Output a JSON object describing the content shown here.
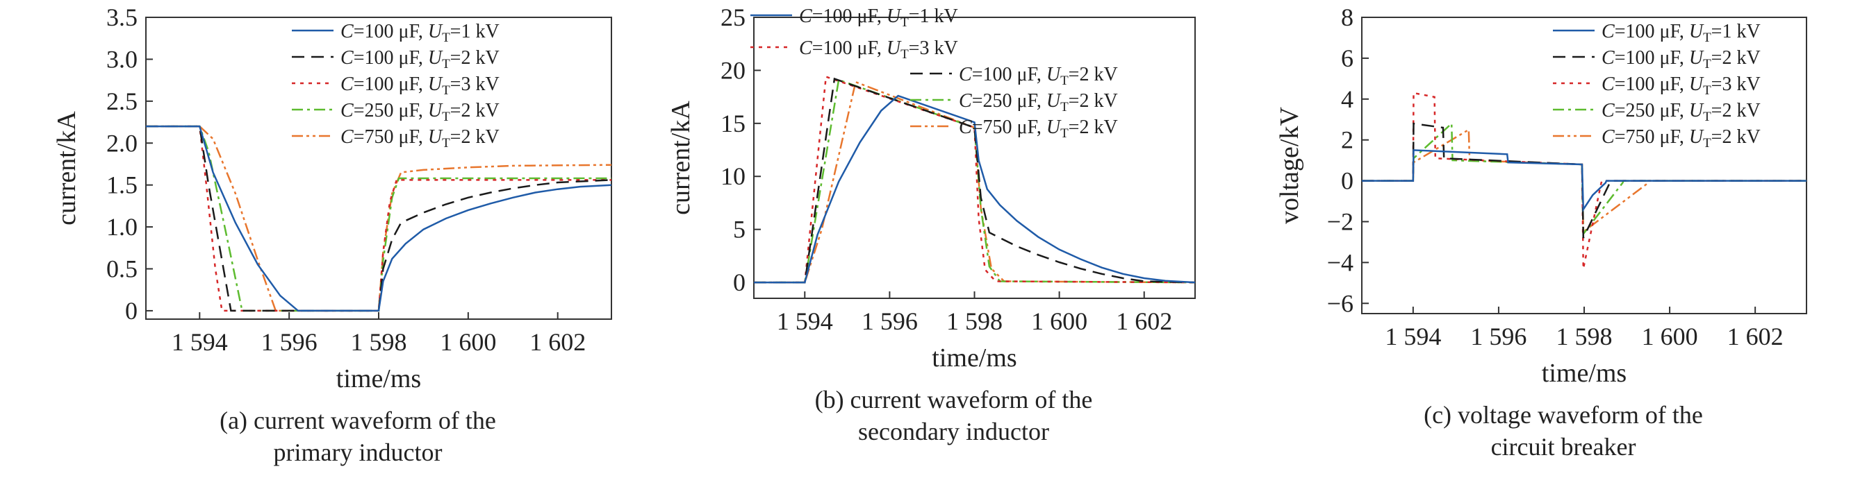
{
  "colors": {
    "s1": "#1f5ba8",
    "s2": "#1a1a1a",
    "s3": "#d62728",
    "s4": "#5dbb2f",
    "s5": "#e8762d"
  },
  "legend_labels": [
    {
      "pre": "C",
      "mid": "=100 μF, ",
      "u": "U",
      "sub": "T",
      "post": "=1 kV"
    },
    {
      "pre": "C",
      "mid": "=100 μF, ",
      "u": "U",
      "sub": "T",
      "post": "=2 kV"
    },
    {
      "pre": "C",
      "mid": "=100 μF, ",
      "u": "U",
      "sub": "T",
      "post": "=3 kV"
    },
    {
      "pre": "C",
      "mid": "=250 μF, ",
      "u": "U",
      "sub": "T",
      "post": "=2 kV"
    },
    {
      "pre": "C",
      "mid": "=750 μF, ",
      "u": "U",
      "sub": "T",
      "post": "=2 kV"
    }
  ],
  "chart_data": [
    {
      "type": "line",
      "xlabel": "time/ms",
      "ylabel": "current/kA",
      "caption": [
        "(a) current waveform of the",
        "primary inductor"
      ],
      "xlim": [
        1592.8,
        1603.2
      ],
      "ylim": [
        -0.1,
        3.5
      ],
      "xticks": [
        1594,
        1596,
        1598,
        1600,
        1602
      ],
      "xtick_labels": [
        "1 594",
        "1 596",
        "1 598",
        "1 600",
        "1 602"
      ],
      "yticks": [
        0,
        0.5,
        1.0,
        1.5,
        2.0,
        2.5,
        3.0,
        3.5
      ],
      "ytick_labels": [
        "0",
        "0.5",
        "1.0",
        "1.5",
        "2.0",
        "2.5",
        "3.0",
        "3.5"
      ],
      "legend_order": [
        0,
        1,
        2,
        3,
        4
      ],
      "series": [
        {
          "x": [
            1592.8,
            1594.0,
            1594.3,
            1594.8,
            1595.3,
            1595.8,
            1596.2,
            1598.0,
            1598.1,
            1598.3,
            1598.6,
            1599.0,
            1599.5,
            1600.0,
            1600.5,
            1601.0,
            1601.5,
            1602.0,
            1602.5,
            1603.2
          ],
          "y": [
            2.2,
            2.2,
            1.65,
            1.05,
            0.55,
            0.18,
            0.0,
            0.0,
            0.35,
            0.62,
            0.8,
            0.97,
            1.1,
            1.2,
            1.28,
            1.35,
            1.41,
            1.45,
            1.48,
            1.5
          ]
        },
        {
          "x": [
            1592.8,
            1594.0,
            1594.2,
            1594.5,
            1594.7,
            1598.0,
            1598.1,
            1598.3,
            1598.5,
            1599.0,
            1599.5,
            1600.0,
            1600.5,
            1601.0,
            1601.5,
            1602.0,
            1603.2
          ],
          "y": [
            2.2,
            2.2,
            1.5,
            0.6,
            0.0,
            0.0,
            0.5,
            0.85,
            1.05,
            1.17,
            1.27,
            1.35,
            1.41,
            1.46,
            1.5,
            1.53,
            1.56
          ]
        },
        {
          "x": [
            1592.8,
            1594.0,
            1594.15,
            1594.35,
            1594.5,
            1598.0,
            1598.1,
            1598.25,
            1598.4,
            1603.2
          ],
          "y": [
            2.2,
            2.2,
            1.5,
            0.5,
            0.0,
            0.0,
            0.7,
            1.3,
            1.56,
            1.56
          ]
        },
        {
          "x": [
            1592.8,
            1594.0,
            1594.2,
            1594.6,
            1594.95,
            1598.0,
            1598.1,
            1598.3,
            1598.45,
            1603.2
          ],
          "y": [
            2.2,
            2.2,
            1.9,
            0.9,
            0.0,
            0.0,
            0.6,
            1.35,
            1.58,
            1.58
          ]
        },
        {
          "x": [
            1592.8,
            1594.0,
            1594.3,
            1594.8,
            1595.3,
            1595.7,
            1598.0,
            1598.1,
            1598.3,
            1598.5,
            1599.0,
            1600.0,
            1601.0,
            1603.2
          ],
          "y": [
            2.2,
            2.2,
            2.05,
            1.4,
            0.6,
            0.0,
            0.0,
            0.7,
            1.4,
            1.65,
            1.68,
            1.71,
            1.73,
            1.74
          ]
        }
      ]
    },
    {
      "type": "line",
      "xlabel": "time/ms",
      "ylabel": "current/kA",
      "caption": [
        "(b) current waveform of the",
        "secondary inductor"
      ],
      "xlim": [
        1592.8,
        1603.2
      ],
      "ylim": [
        -1.5,
        25
      ],
      "xticks": [
        1594,
        1596,
        1598,
        1600,
        1602
      ],
      "xtick_labels": [
        "1 594",
        "1 596",
        "1 598",
        "1 600",
        "1 602"
      ],
      "yticks": [
        0,
        5,
        10,
        15,
        20,
        25
      ],
      "ytick_labels": [
        "0",
        "5",
        "10",
        "15",
        "20",
        "25"
      ],
      "legend_order": [
        0,
        2,
        1,
        3,
        4
      ],
      "series": [
        {
          "x": [
            1592.8,
            1594.0,
            1594.3,
            1594.8,
            1595.3,
            1595.8,
            1596.2,
            1598.0,
            1598.1,
            1598.3,
            1598.6,
            1599.0,
            1599.5,
            1600.0,
            1600.5,
            1601.0,
            1601.5,
            1602.0,
            1602.5,
            1603.2
          ],
          "y": [
            0,
            0,
            4.5,
            9.5,
            13.2,
            16.2,
            17.6,
            15.1,
            11.5,
            8.8,
            7.3,
            5.8,
            4.3,
            3.1,
            2.2,
            1.4,
            0.8,
            0.4,
            0.15,
            0
          ]
        },
        {
          "x": [
            1592.8,
            1594.0,
            1594.7,
            1598.0,
            1598.15,
            1598.35,
            1599.0,
            1599.5,
            1600.0,
            1600.5,
            1601.0,
            1601.5,
            1602.0,
            1603.2
          ],
          "y": [
            0,
            0,
            19.2,
            14.6,
            8.0,
            4.7,
            3.4,
            2.6,
            1.9,
            1.3,
            0.8,
            0.4,
            0.1,
            0
          ]
        },
        {
          "x": [
            1592.8,
            1594.0,
            1594.5,
            1598.0,
            1598.1,
            1598.25,
            1598.5,
            1603.2
          ],
          "y": [
            0,
            0,
            19.4,
            14.6,
            6.0,
            1.2,
            0.1,
            0
          ]
        },
        {
          "x": [
            1592.8,
            1594.0,
            1594.8,
            1598.0,
            1598.15,
            1598.35,
            1598.6,
            1603.2
          ],
          "y": [
            0,
            0,
            19.1,
            14.6,
            7.0,
            1.5,
            0.1,
            0
          ]
        },
        {
          "x": [
            1592.8,
            1594.0,
            1594.4,
            1595.2,
            1598.0,
            1598.15,
            1598.4,
            1598.7,
            1603.2
          ],
          "y": [
            0,
            0,
            5.0,
            18.9,
            14.6,
            7.0,
            1.3,
            0.1,
            0
          ]
        }
      ]
    },
    {
      "type": "line",
      "xlabel": "time/ms",
      "ylabel": "voltage/kV",
      "caption": [
        "(c) voltage waveform of the",
        "circuit breaker"
      ],
      "xlim": [
        1592.8,
        1603.2
      ],
      "ylim": [
        -6.5,
        8
      ],
      "xticks": [
        1594,
        1596,
        1598,
        1600,
        1602
      ],
      "xtick_labels": [
        "1 594",
        "1 596",
        "1 598",
        "1 600",
        "1 602"
      ],
      "yticks": [
        -6,
        -4,
        -2,
        0,
        2,
        4,
        6,
        8
      ],
      "ytick_labels": [
        "−6",
        "−4",
        "−2",
        "0",
        "2",
        "4",
        "6",
        "8"
      ],
      "legend_order": [
        0,
        1,
        2,
        3,
        4
      ],
      "series": [
        {
          "x": [
            1592.8,
            1594.0,
            1594.01,
            1596.2,
            1596.22,
            1597.95,
            1597.98,
            1598.2,
            1598.5,
            1598.52,
            1603.2
          ],
          "y": [
            0,
            0,
            1.5,
            1.3,
            0.9,
            0.8,
            -1.4,
            -0.7,
            -0.1,
            0,
            0
          ]
        },
        {
          "x": [
            1592.8,
            1594.0,
            1594.01,
            1594.7,
            1594.72,
            1597.95,
            1597.98,
            1598.6,
            1598.62,
            1603.2
          ],
          "y": [
            0,
            0,
            2.8,
            2.6,
            1.1,
            0.8,
            -2.8,
            -0.1,
            0,
            0
          ]
        },
        {
          "x": [
            1592.8,
            1594.0,
            1594.01,
            1594.5,
            1594.52,
            1597.95,
            1597.98,
            1598.4,
            1598.42,
            1603.2
          ],
          "y": [
            0,
            0,
            4.3,
            4.1,
            1.1,
            0.8,
            -4.3,
            -0.1,
            0,
            0
          ]
        },
        {
          "x": [
            1592.8,
            1594.0,
            1594.01,
            1594.9,
            1594.92,
            1597.95,
            1597.98,
            1598.9,
            1598.92,
            1603.2
          ],
          "y": [
            0,
            0,
            1.1,
            2.8,
            1.0,
            0.8,
            -2.6,
            -0.1,
            0,
            0
          ]
        },
        {
          "x": [
            1592.8,
            1594.0,
            1594.01,
            1595.3,
            1595.32,
            1597.95,
            1597.98,
            1599.5,
            1599.52,
            1603.2
          ],
          "y": [
            0,
            0,
            0.9,
            2.5,
            1.0,
            0.8,
            -2.5,
            -0.1,
            0,
            0
          ]
        }
      ]
    }
  ]
}
